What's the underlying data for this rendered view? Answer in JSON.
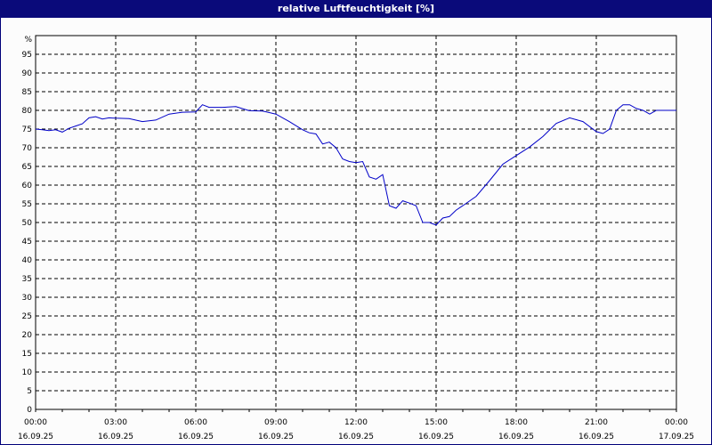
{
  "title": "relative Luftfeuchtigkeit [%]",
  "chart_data": {
    "type": "line",
    "title": "relative Luftfeuchtigkeit [%]",
    "ylabel": "%",
    "xlabel": "",
    "ylim": [
      0,
      100
    ],
    "yticks": [
      0,
      5,
      10,
      15,
      20,
      25,
      30,
      35,
      40,
      45,
      50,
      55,
      60,
      65,
      70,
      75,
      80,
      85,
      90,
      95
    ],
    "xticks": [
      {
        "time": "00:00",
        "date": "16.09.25"
      },
      {
        "time": "03:00",
        "date": "16.09.25"
      },
      {
        "time": "06:00",
        "date": "16.09.25"
      },
      {
        "time": "09:00",
        "date": "16.09.25"
      },
      {
        "time": "12:00",
        "date": "16.09.25"
      },
      {
        "time": "15:00",
        "date": "16.09.25"
      },
      {
        "time": "18:00",
        "date": "16.09.25"
      },
      {
        "time": "21:00",
        "date": "16.09.25"
      },
      {
        "time": "00:00",
        "date": "17.09.25"
      }
    ],
    "grid": true,
    "line_color": "#0000c8",
    "series": [
      {
        "name": "relative Luftfeuchtigkeit",
        "x_hours": [
          0,
          0.25,
          0.5,
          0.75,
          1,
          1.25,
          1.5,
          1.75,
          2,
          2.25,
          2.5,
          2.75,
          3,
          3.5,
          4,
          4.5,
          5,
          5.5,
          6,
          6.25,
          6.5,
          7,
          7.5,
          8,
          8.5,
          9,
          9.5,
          10,
          10.25,
          10.5,
          10.75,
          11,
          11.25,
          11.5,
          11.75,
          12,
          12.25,
          12.5,
          12.75,
          13,
          13.25,
          13.5,
          13.75,
          14,
          14.25,
          14.5,
          14.75,
          15,
          15.25,
          15.5,
          15.75,
          16,
          16.5,
          17,
          17.5,
          18,
          18.5,
          19,
          19.5,
          20,
          20.5,
          21,
          21.25,
          21.5,
          21.75,
          22,
          22.25,
          22.5,
          22.75,
          23,
          23.25,
          23.5,
          23.75,
          24
        ],
        "values": [
          75,
          74.8,
          74.6,
          74.8,
          74.2,
          75.2,
          75.8,
          76.4,
          78,
          78.3,
          77.7,
          78,
          77.9,
          77.8,
          77,
          77.4,
          79,
          79.5,
          79.6,
          81.5,
          80.8,
          80.8,
          81,
          79.9,
          79.8,
          79,
          77,
          74.8,
          74,
          73.7,
          71,
          71.5,
          70,
          67,
          66.3,
          66,
          66.3,
          62.2,
          61.6,
          62.8,
          54.5,
          53.8,
          55.8,
          55.2,
          54.5,
          50,
          50,
          49.3,
          51.2,
          51.6,
          53.3,
          54.5,
          57,
          61.2,
          65.6,
          67.9,
          70.2,
          73,
          76.5,
          78,
          77,
          74.3,
          73.8,
          75,
          80,
          81.5,
          81.5,
          80.5,
          80,
          79,
          80,
          80,
          80,
          80
        ]
      }
    ]
  }
}
